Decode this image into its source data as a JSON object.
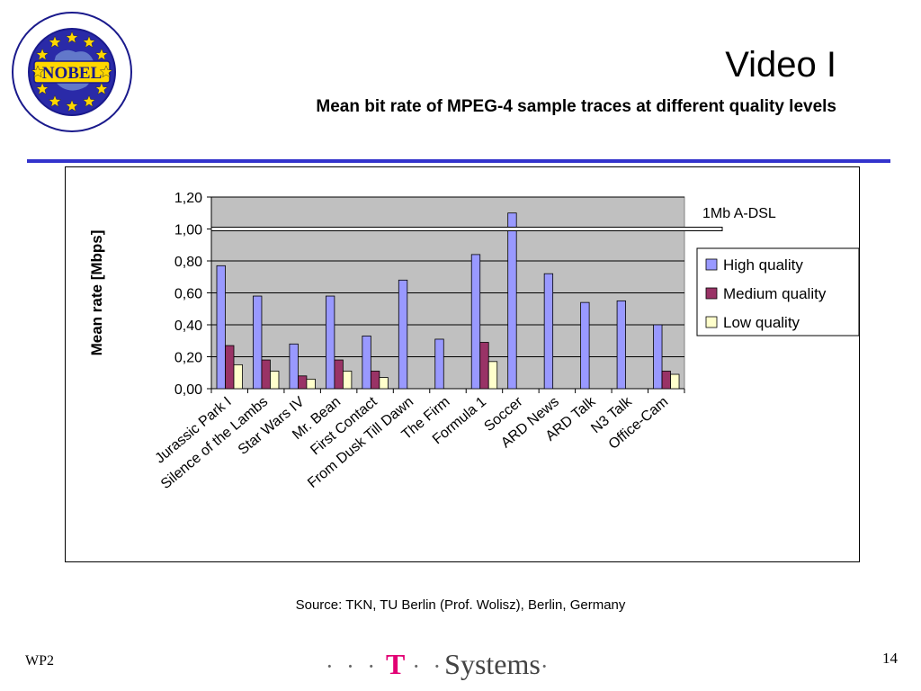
{
  "slide": {
    "title": "Video I",
    "subtitle": "Mean bit rate of MPEG-4 sample traces at different quality levels",
    "source": "Source: TKN, TU Berlin (Prof. Wolisz), Berlin, Germany",
    "footer_left": "WP2",
    "page_number": "14",
    "brand_prefix": "· · ·",
    "brand_t": "T",
    "brand_mid": "· ·",
    "brand_name": "Systems",
    "brand_suffix": "·",
    "logo_text": "NOBEL",
    "rule_color": "#3333cc"
  },
  "chart_data": {
    "type": "bar",
    "ylabel": "Mean rate [Mbps]",
    "ylim": [
      0,
      1.2
    ],
    "yticks": [
      "0,00",
      "0,20",
      "0,40",
      "0,60",
      "0,80",
      "1,00",
      "1,20"
    ],
    "categories": [
      "Jurassic Park I",
      "Silence of the Lambs",
      "Star Wars IV",
      "Mr. Bean",
      "First Contact",
      "From Dusk Till Dawn",
      "The Firm",
      "Formula 1",
      "Soccer",
      "ARD News",
      "ARD Talk",
      "N3 Talk",
      "Office-Cam"
    ],
    "series": [
      {
        "name": "High quality",
        "color": "#9999ff",
        "values": [
          0.77,
          0.58,
          0.28,
          0.58,
          0.33,
          0.68,
          0.31,
          0.84,
          1.1,
          0.72,
          0.54,
          0.55,
          0.4
        ]
      },
      {
        "name": "Medium quality",
        "color": "#993366",
        "values": [
          0.27,
          0.18,
          0.08,
          0.18,
          0.11,
          null,
          null,
          0.29,
          null,
          null,
          null,
          null,
          0.11
        ]
      },
      {
        "name": "Low quality",
        "color": "#ffffcc",
        "values": [
          0.15,
          0.11,
          0.06,
          0.11,
          0.07,
          null,
          null,
          0.17,
          null,
          null,
          null,
          null,
          0.09
        ]
      }
    ],
    "reference_line": {
      "value": 1.0,
      "label": "1Mb A-DSL"
    },
    "plot_background": "#c0c0c0",
    "grid": true,
    "legend_position": "right"
  }
}
